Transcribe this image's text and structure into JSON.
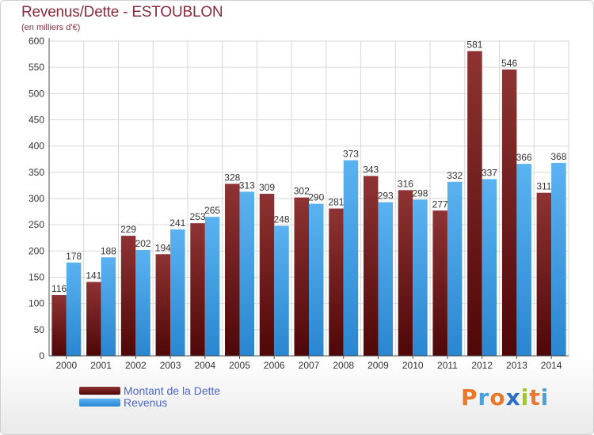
{
  "title": "Revenus/Dette - ESTOUBLON",
  "subtitle": "(en milliers d'€)",
  "logo": {
    "text": "Proxiti",
    "letters": [
      "P",
      "r",
      "o",
      "x",
      "i",
      "t",
      "i"
    ],
    "colors": [
      "#e8792a",
      "#4aa0d8",
      "#e8792a",
      "#2a6fc4",
      "#9ec43a",
      "#e8792a",
      "#4aa0d8"
    ]
  },
  "legend": [
    {
      "label": "Montant de la Dette",
      "color": "#6e1515"
    },
    {
      "label": "Revenus",
      "color": "#3c9ee6"
    }
  ],
  "chart_data": {
    "type": "bar",
    "title": "Revenus/Dette - ESTOUBLON",
    "subtitle": "(en milliers d'€)",
    "categories": [
      "2000",
      "2001",
      "2002",
      "2003",
      "2004",
      "2005",
      "2006",
      "2007",
      "2008",
      "2009",
      "2010",
      "2011",
      "2012",
      "2013",
      "2014"
    ],
    "series": [
      {
        "name": "Montant de la Dette",
        "color": "#6e1515",
        "values": [
          116,
          141,
          229,
          194,
          253,
          328,
          309,
          302,
          281,
          343,
          316,
          277,
          581,
          546,
          311
        ]
      },
      {
        "name": "Revenus",
        "color": "#3c9ee6",
        "values": [
          178,
          188,
          202,
          241,
          265,
          313,
          248,
          290,
          373,
          293,
          298,
          332,
          337,
          366,
          368
        ]
      }
    ],
    "yticks": [
      0,
      50,
      100,
      150,
      200,
      250,
      300,
      350,
      400,
      450,
      500,
      550,
      600
    ],
    "ylim": [
      0,
      600
    ],
    "grid": true,
    "legend_position": "bottom-left"
  }
}
